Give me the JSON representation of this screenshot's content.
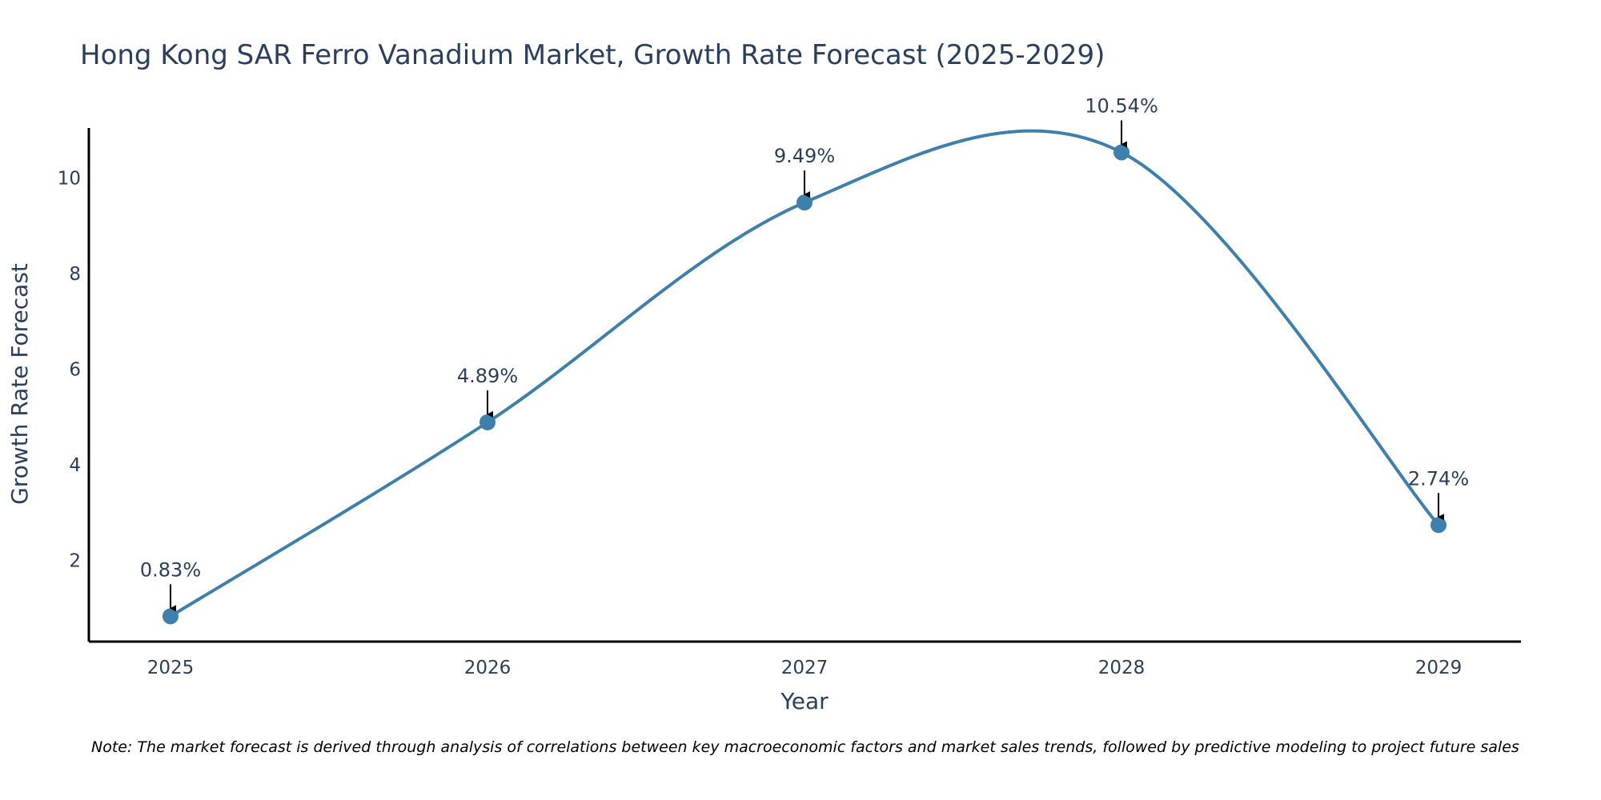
{
  "chart_data": {
    "type": "line",
    "title": "Hong Kong SAR Ferro Vanadium Market, Growth Rate Forecast (2025-2029)",
    "xlabel": "Year",
    "ylabel": "Growth Rate Forecast",
    "categories": [
      "2025",
      "2026",
      "2027",
      "2028",
      "2029"
    ],
    "series": [
      {
        "name": "Growth Rate Forecast",
        "values": [
          0.83,
          4.89,
          9.49,
          10.54,
          2.74
        ],
        "labels": [
          "0.83%",
          "4.89%",
          "9.49%",
          "10.54%",
          "2.74%"
        ]
      }
    ],
    "y_ticks": [
      2,
      4,
      6,
      8,
      10
    ],
    "ylim": [
      0.3,
      11.05
    ],
    "grid": false,
    "line_shape": "spline",
    "colors": {
      "line": "#3f7fab",
      "marker": "#3f7fab",
      "arrow": "#000000",
      "text": "#2a3f5f"
    },
    "note": "Note: The market forecast is derived through analysis of correlations between key macroeconomic factors and market sales trends, followed by predictive modeling to project future sales"
  }
}
